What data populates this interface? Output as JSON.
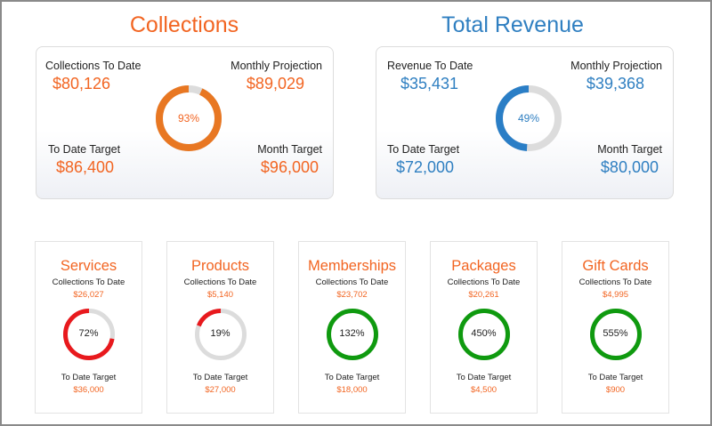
{
  "collections": {
    "title": "Collections",
    "to_date_label": "Collections To Date",
    "to_date_value": "$80,126",
    "projection_label": "Monthly Projection",
    "projection_value": "$89,029",
    "target_label": "To Date Target",
    "target_value": "$86,400",
    "month_target_label": "Month Target",
    "month_target_value": "$96,000",
    "percent_label": "93%",
    "percent": 93,
    "color": "#e87722",
    "label_color": "#f26522"
  },
  "revenue": {
    "title": "Total Revenue",
    "to_date_label": "Revenue To Date",
    "to_date_value": "$35,431",
    "projection_label": "Monthly Projection",
    "projection_value": "$39,368",
    "target_label": "To Date Target",
    "target_value": "$72,000",
    "month_target_label": "Month Target",
    "month_target_value": "$80,000",
    "percent_label": "49%",
    "percent": 49,
    "color": "#2a7ec6",
    "label_color": "#2f7fc1"
  },
  "categories": [
    {
      "title": "Services",
      "collections_label": "Collections To Date",
      "collections_value": "$26,027",
      "percent_label": "72%",
      "percent": 72,
      "color": "#e8191d",
      "target_label": "To Date Target",
      "target_value": "$36,000"
    },
    {
      "title": "Products",
      "collections_label": "Collections To Date",
      "collections_value": "$5,140",
      "percent_label": "19%",
      "percent": 19,
      "color": "#e8191d",
      "target_label": "To Date Target",
      "target_value": "$27,000"
    },
    {
      "title": "Memberships",
      "collections_label": "Collections To Date",
      "collections_value": "$23,702",
      "percent_label": "132%",
      "percent": 132,
      "color": "#0f9a0f",
      "target_label": "To Date Target",
      "target_value": "$18,000"
    },
    {
      "title": "Packages",
      "collections_label": "Collections To Date",
      "collections_value": "$20,261",
      "percent_label": "450%",
      "percent": 450,
      "color": "#0f9a0f",
      "target_label": "To Date Target",
      "target_value": "$4,500"
    },
    {
      "title": "Gift Cards",
      "collections_label": "Collections To Date",
      "collections_value": "$4,995",
      "percent_label": "555%",
      "percent": 555,
      "color": "#0f9a0f",
      "target_label": "To Date Target",
      "target_value": "$900"
    }
  ],
  "track_color": "#dcdcdc"
}
